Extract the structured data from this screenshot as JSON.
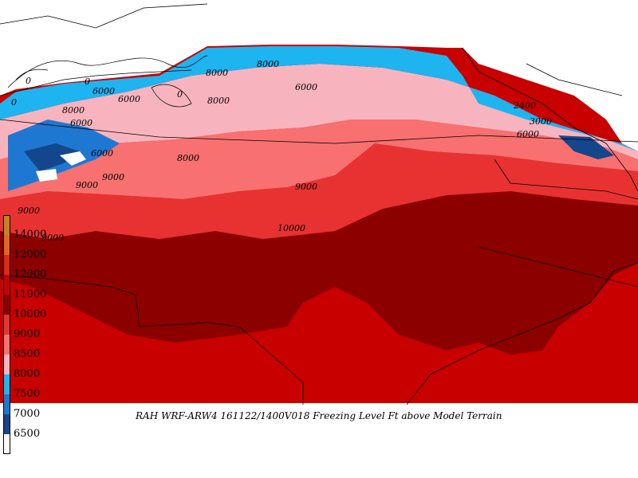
{
  "caption": "RAH WRF-ARW4 161122/1400V018  Freezing Level Ft above Model Terrain",
  "legend": [
    {
      "label": "14000",
      "color": "#c8821e"
    },
    {
      "label": "12000",
      "color": "#e8641e"
    },
    {
      "label": "12000",
      "color": "#e02810"
    },
    {
      "label": "11000",
      "color": "#c80000"
    },
    {
      "label": "10000",
      "color": "#8c0000"
    },
    {
      "label": "9000",
      "color": "#e83232"
    },
    {
      "label": "8500",
      "color": "#f87070"
    },
    {
      "label": "8000",
      "color": "#f8b4be"
    },
    {
      "label": "7500",
      "color": "#1eb4f0"
    },
    {
      "label": "7000",
      "color": "#1e78d2"
    },
    {
      "label": "6500",
      "color": "#14468c"
    },
    {
      "label": "",
      "color": "#ffffff"
    }
  ],
  "contour_labels": [
    {
      "text": "0"
    },
    {
      "text": "0"
    },
    {
      "text": "0"
    },
    {
      "text": "0"
    },
    {
      "text": "8000"
    },
    {
      "text": "8000"
    },
    {
      "text": "6000"
    },
    {
      "text": "6000"
    },
    {
      "text": "8000"
    },
    {
      "text": "6000"
    },
    {
      "text": "8000"
    },
    {
      "text": "9000"
    },
    {
      "text": "9000"
    },
    {
      "text": "9000"
    },
    {
      "text": "9000"
    },
    {
      "text": "10000"
    },
    {
      "text": "9000"
    },
    {
      "text": "2400"
    },
    {
      "text": "3000"
    },
    {
      "text": "6000"
    },
    {
      "text": "6000"
    },
    {
      "text": "8000"
    },
    {
      "text": "6000"
    }
  ]
}
